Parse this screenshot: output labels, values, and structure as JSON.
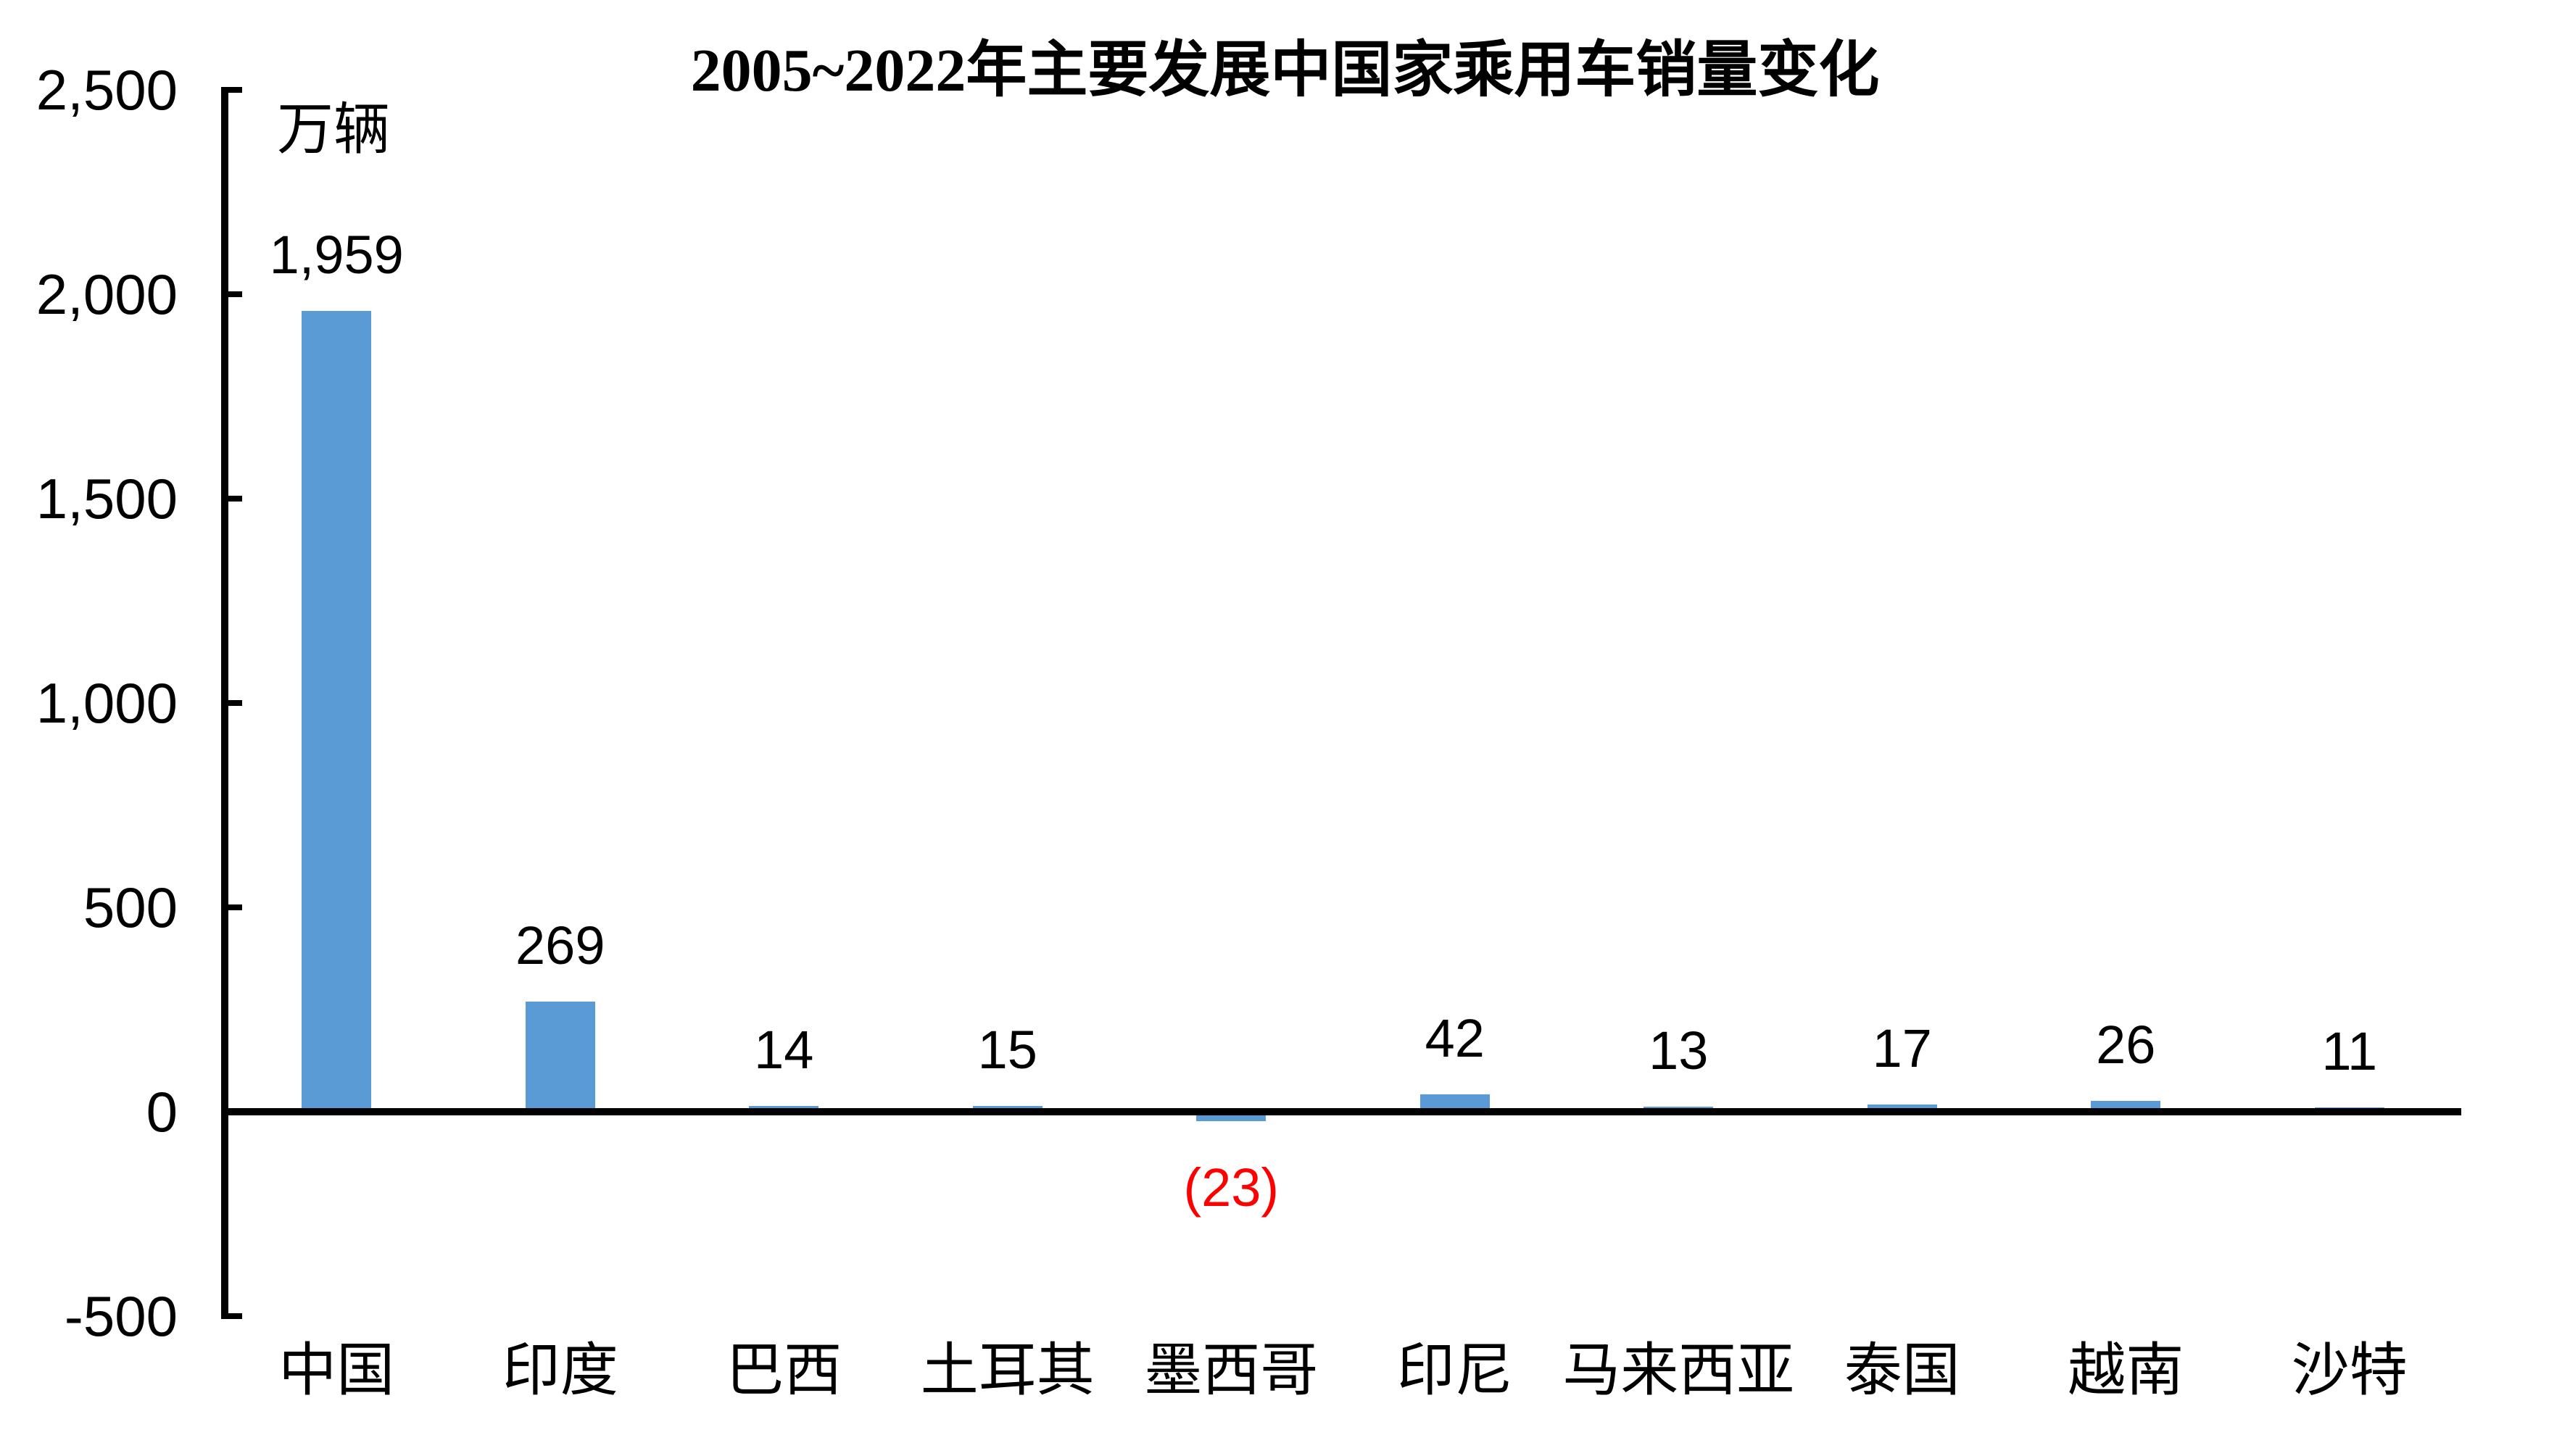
{
  "title": "2005~2022年主要发展中国家乘用车销量变化",
  "chart_data": {
    "type": "bar",
    "title": "2005~2022年主要发展中国家乘用车销量变化",
    "unit_label": "万辆",
    "categories": [
      "中国",
      "印度",
      "巴西",
      "土耳其",
      "墨西哥",
      "印尼",
      "马来西亚",
      "泰国",
      "越南",
      "沙特"
    ],
    "values": [
      1959,
      269,
      14,
      15,
      -23,
      42,
      13,
      17,
      26,
      11
    ],
    "data_labels": [
      "1,959",
      "269",
      "14",
      "15",
      "(23)",
      "42",
      "13",
      "17",
      "26",
      "11"
    ],
    "xlabel": "",
    "ylabel": "万辆",
    "ylim": [
      -500,
      2500
    ],
    "ytick_interval": 500,
    "ytick_labels": [
      "2,500",
      "2,000",
      "1,500",
      "1,000",
      "500",
      "0",
      "-500"
    ],
    "grid": false,
    "legend": "none",
    "bar_color": "#5B9BD5",
    "negative_label_color": "#FF0000",
    "axis_color": "#000000"
  }
}
